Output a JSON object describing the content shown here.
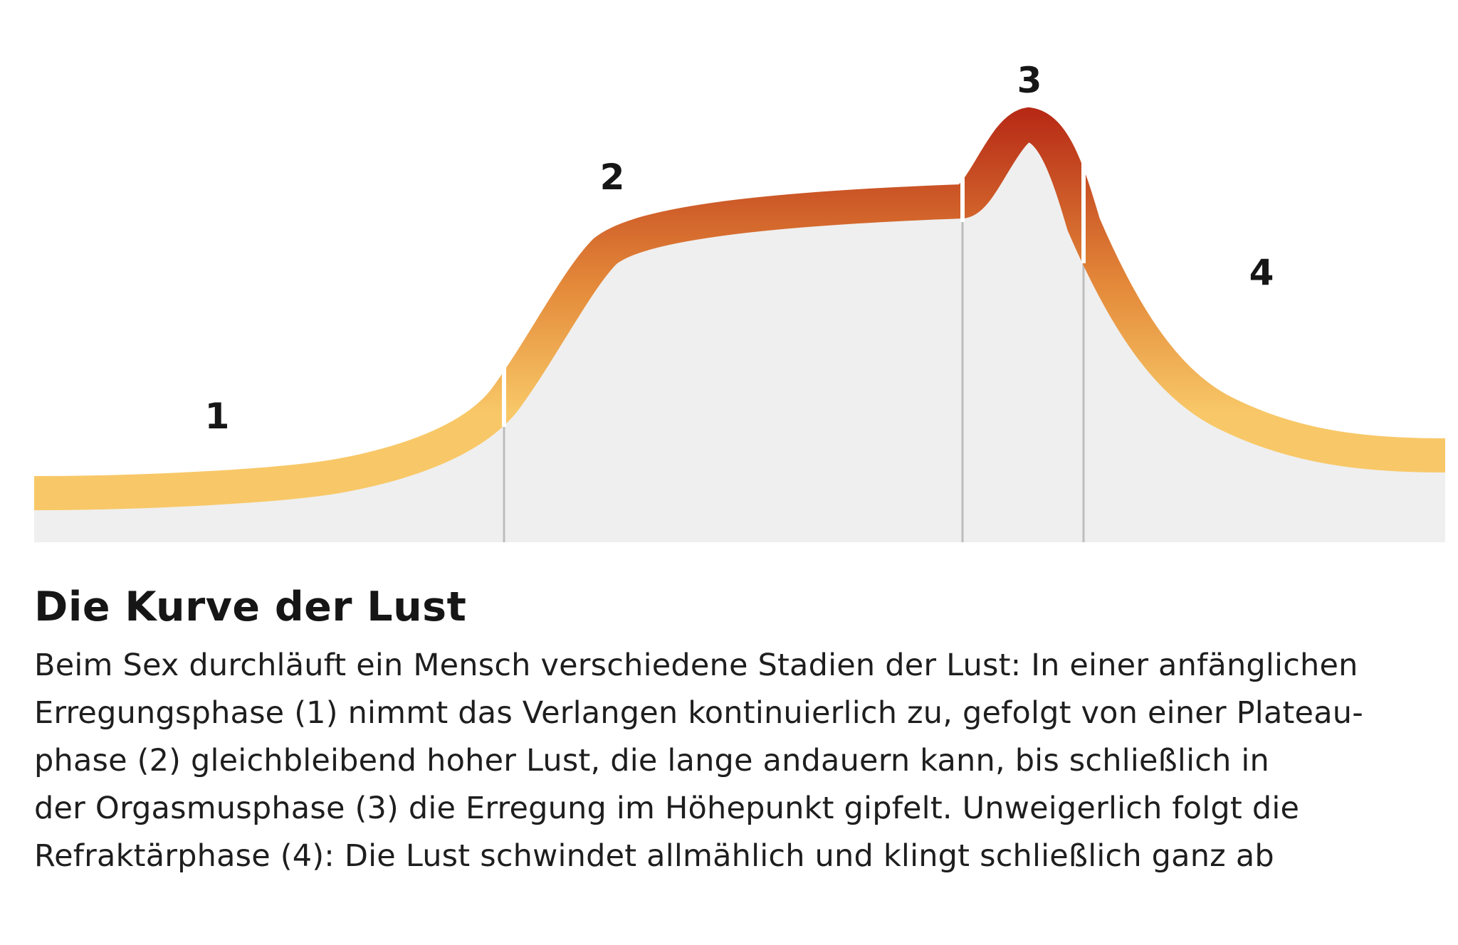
{
  "diagram": {
    "phase_labels": [
      "1",
      "2",
      "3",
      "4"
    ],
    "colors": {
      "background_area": "#efefef",
      "divider": "#bdbdbd",
      "gradient_low": "#f8c868",
      "gradient_mid": "#e48a3a",
      "gradient_high": "#b72b16"
    }
  },
  "caption": {
    "title": "Die Kurve der Lust",
    "lines": [
      "Beim Sex durchläuft ein Mensch verschiedene Stadien der Lust: In einer anfänglichen",
      "Erregungsphase (1) nimmt das Verlangen kontinuierlich zu, gefolgt von einer Plateau-",
      "phase (2) gleichbleibend hoher Lust, die lange andauern kann, bis schließlich in",
      "der Orgasmusphase (3) die Erregung im Höhepunkt gipfelt. Unweigerlich folgt die",
      "Refraktärphase (4): Die Lust schwindet allmählich und klingt schließlich ganz ab"
    ]
  }
}
